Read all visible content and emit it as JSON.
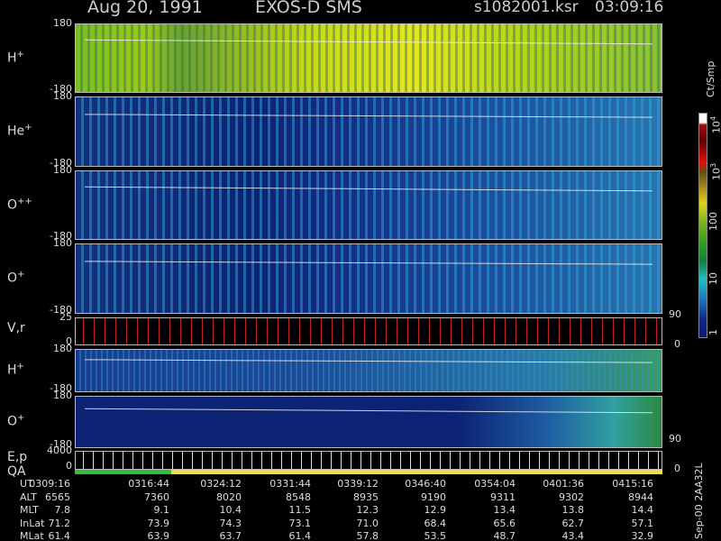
{
  "header": {
    "date": "Aug 20, 1991",
    "instrument": "EXOS-D SMS",
    "file": "s1082001.ksr",
    "time": "03:09:16"
  },
  "panels": [
    {
      "species": "H",
      "charge": "+",
      "top": "180",
      "bottom": "-180"
    },
    {
      "species": "He",
      "charge": "+",
      "top": "180",
      "bottom": "-180"
    },
    {
      "species": "O",
      "charge": "++",
      "top": "180",
      "bottom": "-180"
    },
    {
      "species": "O",
      "charge": "+",
      "top": "180",
      "bottom": "-180"
    },
    {
      "species": "V,r",
      "top": "25",
      "bottom": "0",
      "right_top": "90",
      "right_bottom": "0"
    },
    {
      "species": "H",
      "charge": "+",
      "top": "180",
      "bottom": "-180"
    },
    {
      "species": "O",
      "charge": "+",
      "top": "180",
      "bottom": "-180"
    },
    {
      "species": "E,p",
      "species2": "QA",
      "top": "4000",
      "bottom": "0",
      "right_top": "90",
      "right_bottom": "0"
    }
  ],
  "colorbar": {
    "title": "Ct/Smp",
    "labels": [
      {
        "text": "10",
        "sup": "4"
      },
      {
        "text": "10",
        "sup": "3"
      },
      {
        "text": "100"
      },
      {
        "text": "10"
      },
      {
        "text": "1"
      }
    ]
  },
  "table": {
    "rows": [
      [
        "UT",
        "0309:16",
        "0316:44",
        "0324:12",
        "0331:44",
        "0339:12",
        "0346:40",
        "0354:04",
        "0401:36",
        "0415:16"
      ],
      [
        "ALT",
        "6565",
        "7360",
        "8020",
        "8548",
        "8935",
        "9190",
        "9311",
        "9302",
        "8944"
      ],
      [
        "MLT",
        "7.8",
        "9.1",
        "10.4",
        "11.5",
        "12.3",
        "12.9",
        "13.4",
        "13.8",
        "14.4"
      ],
      [
        "InLat",
        "71.2",
        "73.9",
        "74.3",
        "73.1",
        "71.0",
        "68.4",
        "65.6",
        "62.7",
        "57.1"
      ],
      [
        "MLat",
        "61.4",
        "63.9",
        "63.7",
        "61.4",
        "57.8",
        "53.5",
        "48.7",
        "43.4",
        "32.9"
      ]
    ]
  },
  "footer": "Sep-00  2AA32L"
}
